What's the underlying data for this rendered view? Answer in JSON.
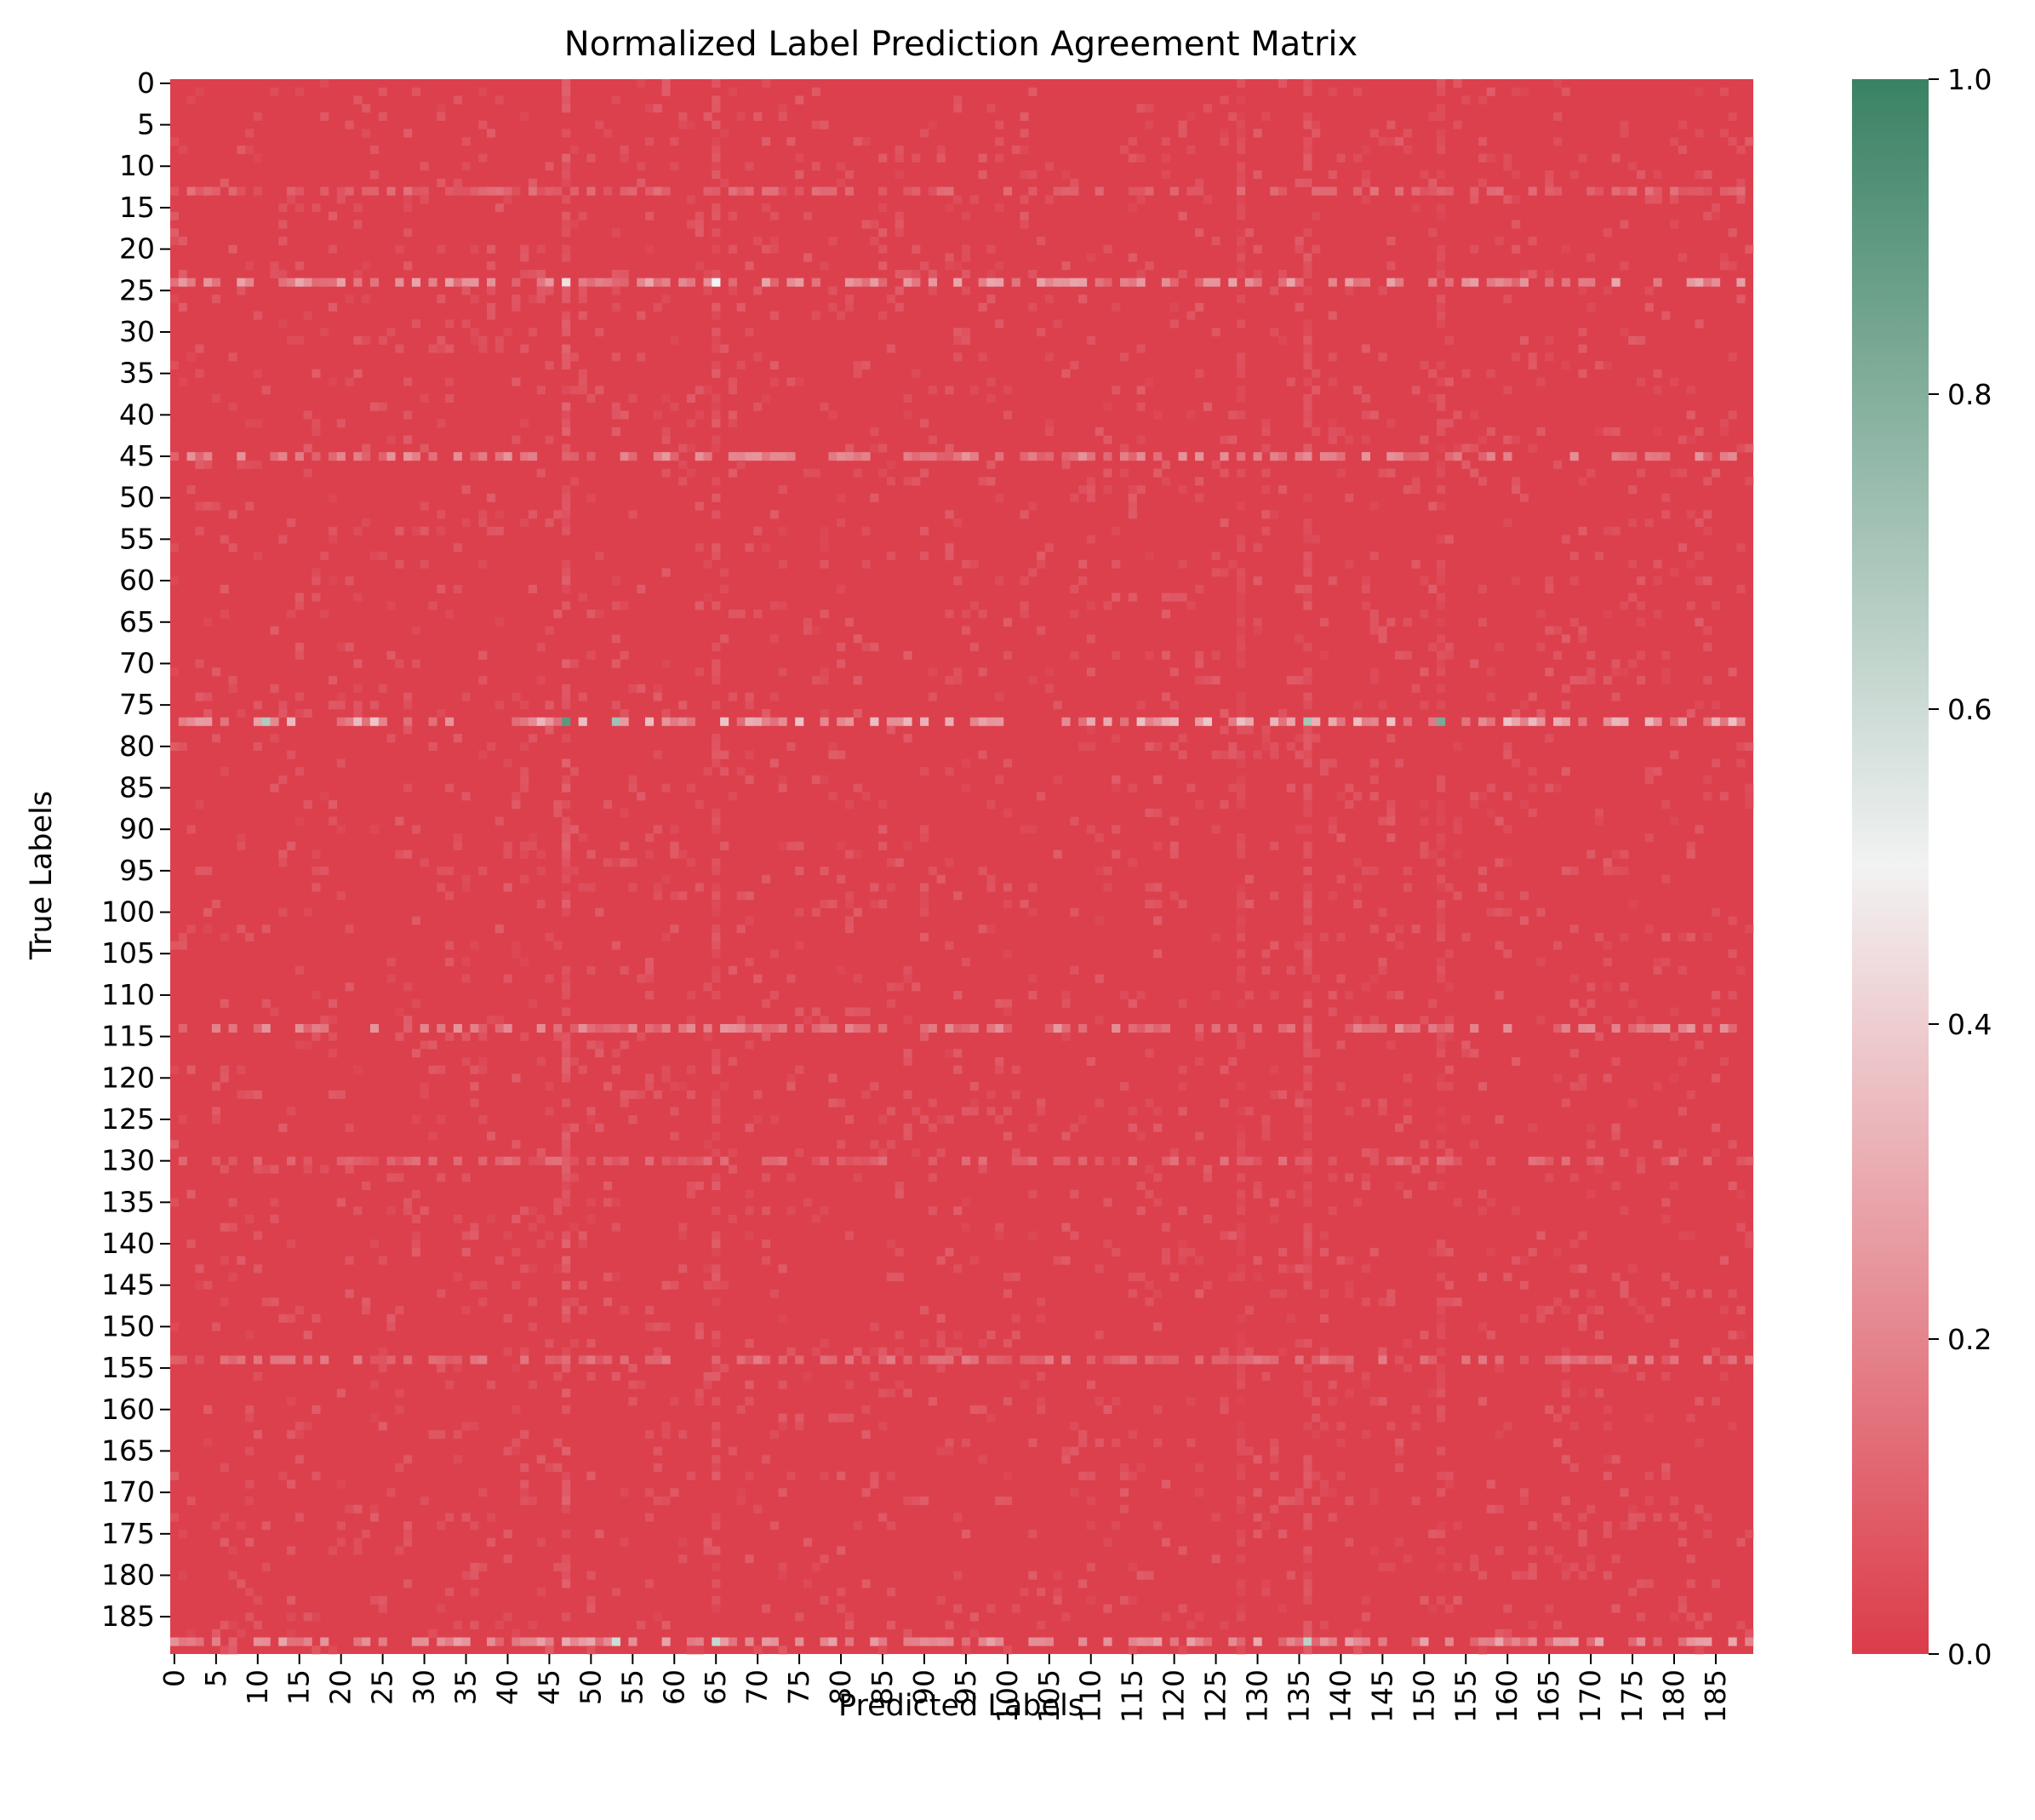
{
  "chart_data": {
    "type": "heatmap",
    "title": "Normalized Label Prediction Agreement Matrix",
    "xlabel": "Predicted Labels",
    "ylabel": "True Labels",
    "n_rows": 190,
    "n_cols": 190,
    "x_tick_labels": [
      "0",
      "5",
      "10",
      "15",
      "20",
      "25",
      "30",
      "35",
      "40",
      "45",
      "50",
      "55",
      "60",
      "65",
      "70",
      "75",
      "80",
      "85",
      "90",
      "95",
      "100",
      "105",
      "110",
      "115",
      "120",
      "125",
      "130",
      "135",
      "140",
      "145",
      "150",
      "155",
      "160",
      "165",
      "170",
      "175",
      "180",
      "185"
    ],
    "y_tick_labels": [
      "0",
      "5",
      "10",
      "15",
      "20",
      "25",
      "30",
      "35",
      "40",
      "45",
      "50",
      "55",
      "60",
      "65",
      "70",
      "75",
      "80",
      "85",
      "90",
      "95",
      "100",
      "105",
      "110",
      "115",
      "120",
      "125",
      "130",
      "135",
      "140",
      "145",
      "150",
      "155",
      "160",
      "165",
      "170",
      "175",
      "180",
      "185"
    ],
    "colorbar": {
      "vmin": 0.0,
      "vmax": 1.0,
      "tick_labels": [
        "0.0",
        "0.2",
        "0.4",
        "0.6",
        "0.8",
        "1.0"
      ],
      "colors": [
        "#dc3c4a",
        "#f2f2f2",
        "#3a8264"
      ]
    },
    "base_value": 0.01,
    "highlight_rows": [
      {
        "row": 13,
        "level": 0.15
      },
      {
        "row": 24,
        "level": 0.3
      },
      {
        "row": 45,
        "level": 0.25
      },
      {
        "row": 77,
        "level": 0.38
      },
      {
        "row": 114,
        "level": 0.25
      },
      {
        "row": 130,
        "level": 0.15
      },
      {
        "row": 154,
        "level": 0.18
      },
      {
        "row": 188,
        "level": 0.3
      }
    ],
    "highlight_cols": [
      {
        "col": 47,
        "level": 0.18
      },
      {
        "col": 65,
        "level": 0.15
      },
      {
        "col": 136,
        "level": 0.15
      },
      {
        "col": 152,
        "level": 0.12
      },
      {
        "col": 128,
        "level": 0.1
      }
    ],
    "bright_cells": [
      {
        "row": 77,
        "col": 11,
        "value": 0.68
      },
      {
        "row": 77,
        "col": 47,
        "value": 0.9
      },
      {
        "row": 77,
        "col": 53,
        "value": 0.72
      },
      {
        "row": 77,
        "col": 136,
        "value": 0.7
      },
      {
        "row": 77,
        "col": 152,
        "value": 0.82
      },
      {
        "row": 188,
        "col": 53,
        "value": 0.6
      },
      {
        "row": 188,
        "col": 65,
        "value": 0.62
      },
      {
        "row": 188,
        "col": 136,
        "value": 0.65
      },
      {
        "row": 24,
        "col": 65,
        "value": 0.5
      },
      {
        "row": 24,
        "col": 47,
        "value": 0.45
      }
    ]
  }
}
